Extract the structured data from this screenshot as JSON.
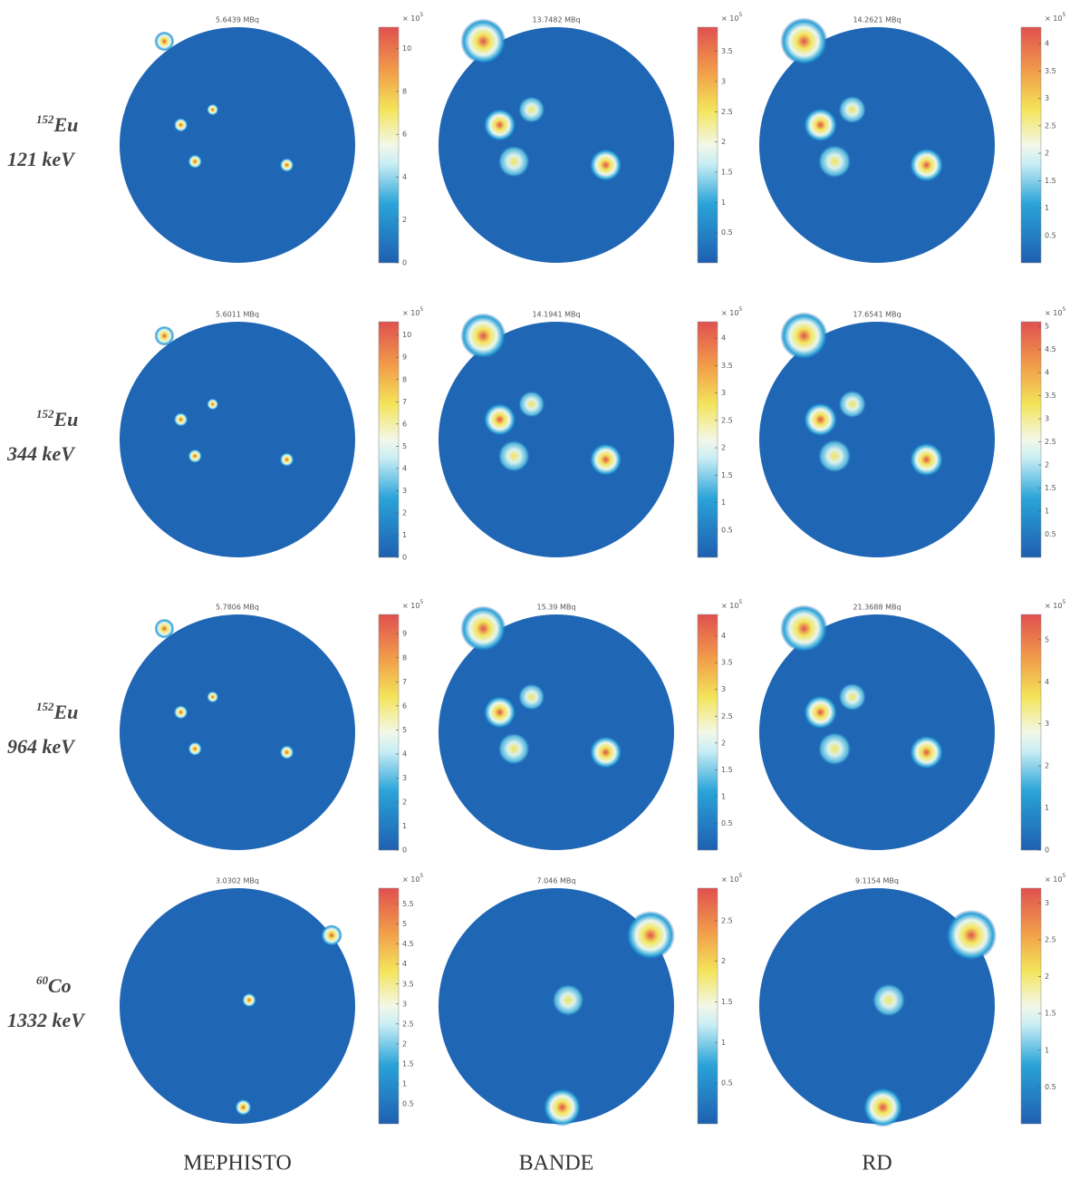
{
  "columns": [
    "MEPHISTO",
    "BANDE",
    "RD"
  ],
  "rows": [
    {
      "isotope_mass": "152",
      "isotope": "Eu",
      "energy": "121 keV",
      "panels": [
        {
          "title": "5.6439 MBq",
          "colorbar": {
            "multiplier": "× 10",
            "exponent": "5",
            "clim": [
              0,
              11
            ],
            "ticks": [
              0,
              2,
              4,
              6,
              8,
              10
            ]
          }
        },
        {
          "title": "13.7482 MBq",
          "colorbar": {
            "multiplier": "× 10",
            "exponent": "5",
            "clim": [
              0,
              3.9
            ],
            "ticks": [
              0.5,
              1,
              1.5,
              2,
              2.5,
              3,
              3.5
            ]
          }
        },
        {
          "title": "14.2621 MBq",
          "colorbar": {
            "multiplier": "× 10",
            "exponent": "5",
            "clim": [
              0,
              4.3
            ],
            "ticks": [
              0.5,
              1,
              1.5,
              2,
              2.5,
              3,
              3.5,
              4
            ]
          }
        }
      ]
    },
    {
      "isotope_mass": "152",
      "isotope": "Eu",
      "energy": "344 keV",
      "panels": [
        {
          "title": "5.6011 MBq",
          "colorbar": {
            "multiplier": "× 10",
            "exponent": "5",
            "clim": [
              0,
              10.6
            ],
            "ticks": [
              0,
              1,
              2,
              3,
              4,
              5,
              6,
              7,
              8,
              9,
              10
            ]
          }
        },
        {
          "title": "14.1941 MBq",
          "colorbar": {
            "multiplier": "× 10",
            "exponent": "5",
            "clim": [
              0,
              4.3
            ],
            "ticks": [
              0.5,
              1,
              1.5,
              2,
              2.5,
              3,
              3.5,
              4
            ]
          }
        },
        {
          "title": "17.6541 MBq",
          "colorbar": {
            "multiplier": "× 10",
            "exponent": "5",
            "clim": [
              0,
              5.1
            ],
            "ticks": [
              0.5,
              1,
              1.5,
              2,
              2.5,
              3,
              3.5,
              4,
              4.5,
              5
            ]
          }
        }
      ]
    },
    {
      "isotope_mass": "152",
      "isotope": "Eu",
      "energy": "964 keV",
      "panels": [
        {
          "title": "5.7806 MBq",
          "colorbar": {
            "multiplier": "× 10",
            "exponent": "5",
            "clim": [
              0,
              9.8
            ],
            "ticks": [
              0,
              1,
              2,
              3,
              4,
              5,
              6,
              7,
              8,
              9
            ]
          }
        },
        {
          "title": "15.39 MBq",
          "colorbar": {
            "multiplier": "× 10",
            "exponent": "5",
            "clim": [
              0,
              4.4
            ],
            "ticks": [
              0.5,
              1,
              1.5,
              2,
              2.5,
              3,
              3.5,
              4
            ]
          }
        },
        {
          "title": "21.3688 MBq",
          "colorbar": {
            "multiplier": "× 10",
            "exponent": "5",
            "clim": [
              0,
              5.6
            ],
            "ticks": [
              0,
              1,
              2,
              3,
              4,
              5
            ]
          }
        }
      ]
    },
    {
      "isotope_mass": "60",
      "isotope": "Co",
      "energy": "1332 keV",
      "panels": [
        {
          "title": "3.0302 MBq",
          "colorbar": {
            "multiplier": "× 10",
            "exponent": "5",
            "clim": [
              0,
              5.9
            ],
            "ticks": [
              0.5,
              1,
              1.5,
              2,
              2.5,
              3,
              3.5,
              4,
              4.5,
              5,
              5.5
            ]
          }
        },
        {
          "title": "7.046 MBq",
          "colorbar": {
            "multiplier": "× 10",
            "exponent": "5",
            "clim": [
              0,
              2.9
            ],
            "ticks": [
              0.5,
              1,
              1.5,
              2,
              2.5
            ]
          }
        },
        {
          "title": "9.1154 MBq",
          "colorbar": {
            "multiplier": "× 10",
            "exponent": "5",
            "clim": [
              0,
              3.2
            ],
            "ticks": [
              0.5,
              1,
              1.5,
              2,
              2.5,
              3
            ]
          }
        }
      ]
    }
  ]
}
